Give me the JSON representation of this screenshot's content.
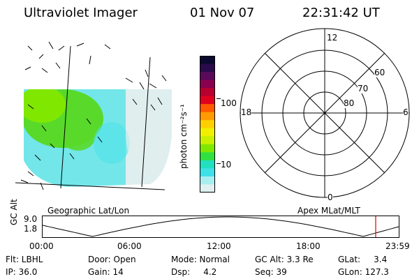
{
  "header": {
    "title": "Ultraviolet Imager",
    "date": "01 Nov 07",
    "time": "22:31:42 UT"
  },
  "colorbar": {
    "unit_label": "photon cm⁻²s⁻¹",
    "ticks": [
      "100",
      "10"
    ],
    "colors": [
      "#0a0a30",
      "#2a0a4a",
      "#5a0a5a",
      "#8a0050",
      "#b80030",
      "#e00020",
      "#ff5a00",
      "#ff9a00",
      "#ffd000",
      "#f0f000",
      "#c8f000",
      "#80e800",
      "#30e040",
      "#20e0c0",
      "#40e0e8",
      "#a8eef0",
      "#e0f0f0"
    ]
  },
  "map_panel": {
    "label": "Geographic Lat/Lon",
    "colors": {
      "green": "#59d92a",
      "cyan": "#4fe3e8",
      "light": "#dfeeee"
    }
  },
  "polar_panel": {
    "label": "Apex MLat/MLT",
    "mlt_labels": {
      "top": "12",
      "left": "18",
      "right": "6",
      "bottom": "0"
    },
    "lat_labels": [
      "60",
      "70",
      "80"
    ]
  },
  "orbit": {
    "axis_title": "GC Alt",
    "y_ticks": [
      "9.0",
      "1.8"
    ],
    "x_ticks": [
      "00:00",
      "06:00",
      "12:00",
      "18:00",
      "23:59"
    ],
    "marker_color": "#e00000"
  },
  "status": {
    "filter": "Flt: LBHL",
    "ip": "IP: 36.0",
    "door": "Door: Open",
    "gain": "Gain: 14",
    "mode": "Mode: Normal",
    "dsp": "Dsp:     4.2",
    "gc_alt": "GC Alt: 3.3 Re",
    "seq": "Seq: 39",
    "glat": "GLat:     3.4",
    "glon": "GLon: 127.3"
  }
}
